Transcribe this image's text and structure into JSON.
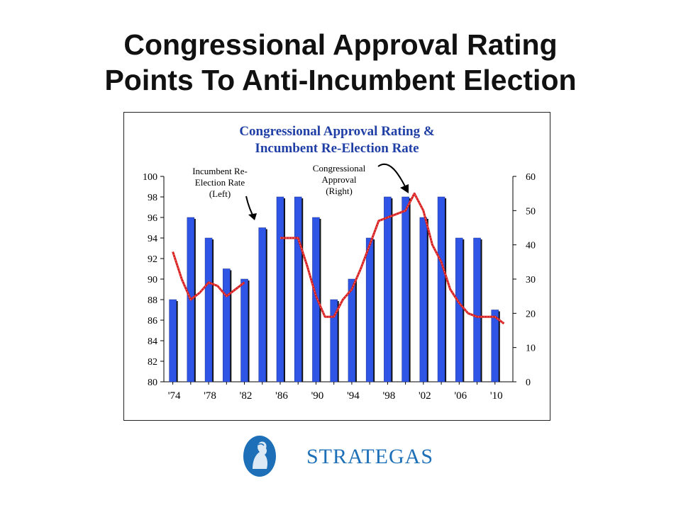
{
  "slide": {
    "title_line1": "Congressional Approval Rating",
    "title_line2": "Points To Anti-Incumbent Election"
  },
  "logo": {
    "name": "STRATEGAS"
  },
  "colors": {
    "bar": "#2e55e6",
    "bar_shadow": "#111111",
    "line": "#d82020",
    "title_blue": "#1f3fa6"
  },
  "chart_data": {
    "type": "bar",
    "title_line1": "Congressional Approval Rating &",
    "title_line2": "Incumbent Re-Election Rate",
    "left_axis": {
      "min": 80,
      "max": 100,
      "step": 2,
      "ticks": [
        "80",
        "82",
        "84",
        "86",
        "88",
        "90",
        "92",
        "94",
        "96",
        "98",
        "100"
      ]
    },
    "right_axis": {
      "min": 0,
      "max": 60,
      "step": 10,
      "ticks": [
        "0",
        "10",
        "20",
        "30",
        "40",
        "50",
        "60"
      ]
    },
    "x_tick_labels": [
      "'74",
      "'78",
      "'82",
      "'86",
      "'90",
      "'94",
      "'98",
      "'02",
      "'06",
      "'10"
    ],
    "categories": [
      "1974",
      "1976",
      "1978",
      "1980",
      "1982",
      "1984",
      "1986",
      "1988",
      "1990",
      "1992",
      "1994",
      "1996",
      "1998",
      "2000",
      "2002",
      "2004",
      "2006",
      "2008",
      "2010"
    ],
    "bars": {
      "name": "Incumbent Re-Election Rate (Left)",
      "values": [
        88,
        96,
        94,
        91,
        90,
        95,
        98,
        98,
        96,
        88,
        90,
        94,
        98,
        98,
        96,
        98,
        94,
        94,
        87
      ]
    },
    "line": {
      "name": "Congressional Approval (Right)",
      "points": [
        [
          1974.0,
          38
        ],
        [
          1975.0,
          30
        ],
        [
          1976.0,
          24
        ],
        [
          1977.0,
          26
        ],
        [
          1978.0,
          29
        ],
        [
          1979.0,
          28
        ],
        [
          1980.0,
          25
        ],
        [
          1981.0,
          27
        ],
        [
          1982.0,
          29
        ],
        [
          1986.0,
          42
        ],
        [
          1987.0,
          42
        ],
        [
          1988.0,
          42
        ],
        [
          1989.0,
          34
        ],
        [
          1990.0,
          25
        ],
        [
          1991.0,
          19
        ],
        [
          1992.0,
          19
        ],
        [
          1993.0,
          24
        ],
        [
          1994.0,
          27
        ],
        [
          1995.0,
          33
        ],
        [
          1996.0,
          40
        ],
        [
          1997.0,
          47
        ],
        [
          1998.0,
          48
        ],
        [
          1999.0,
          49
        ],
        [
          2000.0,
          50
        ],
        [
          2001.0,
          55
        ],
        [
          2002.0,
          50
        ],
        [
          2003.0,
          40
        ],
        [
          2004.0,
          35
        ],
        [
          2005.0,
          27
        ],
        [
          2006.0,
          23
        ],
        [
          2007.0,
          20
        ],
        [
          2008.0,
          19
        ],
        [
          2009.0,
          19
        ],
        [
          2010.0,
          19
        ],
        [
          2011.0,
          17
        ]
      ]
    },
    "annotations": [
      {
        "id": "reelection",
        "lines": [
          "Incumbent Re-",
          "Election Rate",
          "(Left)"
        ]
      },
      {
        "id": "approval",
        "lines": [
          "Congressional",
          "Approval",
          "(Right)"
        ]
      }
    ],
    "grid": false,
    "legend": "none"
  }
}
